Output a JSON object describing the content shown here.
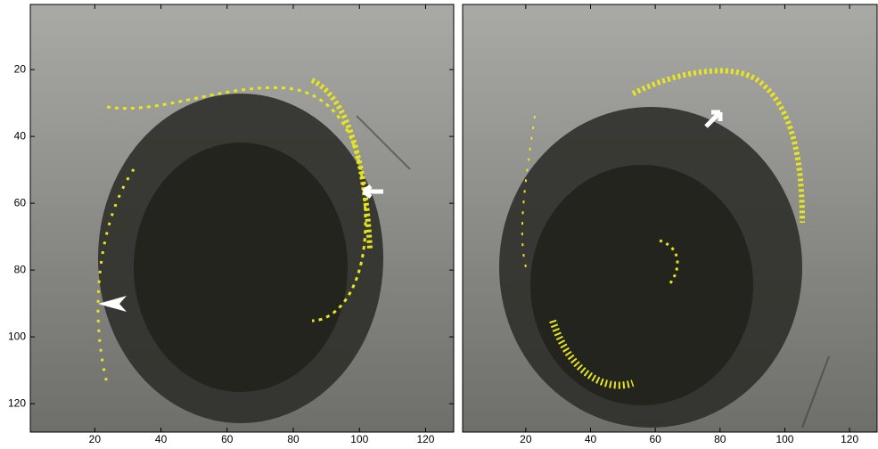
{
  "chart_data": [
    {
      "type": "image",
      "xlim": [
        0.5,
        128.5
      ],
      "ylim": [
        128.5,
        0.5
      ],
      "xticks": [
        20,
        40,
        60,
        80,
        100,
        120
      ],
      "yticks": [
        20,
        40,
        60,
        80,
        100,
        120
      ]
    },
    {
      "type": "image",
      "xlim": [
        0.5,
        128.5
      ],
      "ylim": [
        128.5,
        0.5
      ],
      "xticks": [
        20,
        40,
        60,
        80,
        100,
        120
      ]
    }
  ]
}
